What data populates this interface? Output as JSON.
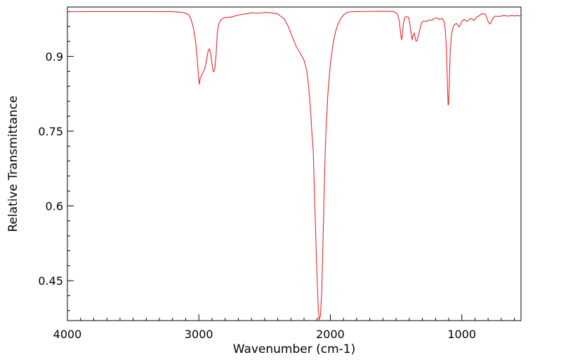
{
  "chart_data": {
    "type": "line",
    "xlabel": "Wavenumber (cm-1)",
    "ylabel": "Relative Transmittance",
    "xlim": [
      4000,
      550
    ],
    "ylim": [
      0.37,
      0.999
    ],
    "x_ticks": [
      {
        "value": 4000,
        "label": "4000"
      },
      {
        "value": 3000,
        "label": "3000"
      },
      {
        "value": 2000,
        "label": "2000"
      },
      {
        "value": 1000,
        "label": "1000"
      }
    ],
    "y_ticks": [
      {
        "value": 0.9,
        "label": "0.9"
      },
      {
        "value": 0.75,
        "label": "0.75"
      },
      {
        "value": 0.6,
        "label": "0.6"
      },
      {
        "value": 0.45,
        "label": "0.45"
      }
    ],
    "grid": false,
    "series": [
      {
        "color": "#e8262a",
        "points": [
          [
            4000,
            0.9895
          ],
          [
            3800,
            0.99
          ],
          [
            3600,
            0.99
          ],
          [
            3400,
            0.99
          ],
          [
            3200,
            0.9898
          ],
          [
            3120,
            0.988
          ],
          [
            3080,
            0.984
          ],
          [
            3060,
            0.975
          ],
          [
            3040,
            0.955
          ],
          [
            3025,
            0.93
          ],
          [
            3012,
            0.895
          ],
          [
            3003,
            0.86
          ],
          [
            2997,
            0.844
          ],
          [
            2990,
            0.856
          ],
          [
            2975,
            0.865
          ],
          [
            2955,
            0.875
          ],
          [
            2940,
            0.895
          ],
          [
            2928,
            0.913
          ],
          [
            2920,
            0.915
          ],
          [
            2910,
            0.905
          ],
          [
            2900,
            0.885
          ],
          [
            2890,
            0.869
          ],
          [
            2880,
            0.872
          ],
          [
            2870,
            0.9
          ],
          [
            2860,
            0.945
          ],
          [
            2850,
            0.965
          ],
          [
            2830,
            0.974
          ],
          [
            2800,
            0.978
          ],
          [
            2750,
            0.979
          ],
          [
            2700,
            0.983
          ],
          [
            2650,
            0.985
          ],
          [
            2600,
            0.9875
          ],
          [
            2550,
            0.9865
          ],
          [
            2500,
            0.988
          ],
          [
            2450,
            0.9875
          ],
          [
            2400,
            0.985
          ],
          [
            2350,
            0.975
          ],
          [
            2320,
            0.96
          ],
          [
            2290,
            0.94
          ],
          [
            2260,
            0.92
          ],
          [
            2230,
            0.907
          ],
          [
            2200,
            0.892
          ],
          [
            2180,
            0.872
          ],
          [
            2165,
            0.84
          ],
          [
            2150,
            0.79
          ],
          [
            2140,
            0.745
          ],
          [
            2130,
            0.71
          ],
          [
            2120,
            0.62
          ],
          [
            2110,
            0.53
          ],
          [
            2100,
            0.45
          ],
          [
            2092,
            0.395
          ],
          [
            2085,
            0.372
          ],
          [
            2075,
            0.38
          ],
          [
            2065,
            0.43
          ],
          [
            2055,
            0.54
          ],
          [
            2045,
            0.65
          ],
          [
            2035,
            0.74
          ],
          [
            2020,
            0.82
          ],
          [
            2000,
            0.885
          ],
          [
            1980,
            0.925
          ],
          [
            1960,
            0.95
          ],
          [
            1940,
            0.966
          ],
          [
            1920,
            0.976
          ],
          [
            1900,
            0.983
          ],
          [
            1880,
            0.987
          ],
          [
            1850,
            0.9895
          ],
          [
            1800,
            0.99
          ],
          [
            1700,
            0.9902
          ],
          [
            1600,
            0.9905
          ],
          [
            1520,
            0.99
          ],
          [
            1490,
            0.985
          ],
          [
            1475,
            0.97
          ],
          [
            1465,
            0.945
          ],
          [
            1458,
            0.933
          ],
          [
            1452,
            0.942
          ],
          [
            1445,
            0.965
          ],
          [
            1435,
            0.978
          ],
          [
            1420,
            0.98
          ],
          [
            1405,
            0.978
          ],
          [
            1395,
            0.965
          ],
          [
            1385,
            0.945
          ],
          [
            1378,
            0.933
          ],
          [
            1370,
            0.942
          ],
          [
            1362,
            0.947
          ],
          [
            1355,
            0.938
          ],
          [
            1348,
            0.93
          ],
          [
            1340,
            0.932
          ],
          [
            1330,
            0.942
          ],
          [
            1318,
            0.955
          ],
          [
            1305,
            0.968
          ],
          [
            1290,
            0.971
          ],
          [
            1270,
            0.97
          ],
          [
            1250,
            0.973
          ],
          [
            1230,
            0.972
          ],
          [
            1210,
            0.976
          ],
          [
            1190,
            0.977
          ],
          [
            1170,
            0.974
          ],
          [
            1150,
            0.976
          ],
          [
            1135,
            0.97
          ],
          [
            1125,
            0.95
          ],
          [
            1118,
            0.92
          ],
          [
            1112,
            0.87
          ],
          [
            1108,
            0.83
          ],
          [
            1104,
            0.802
          ],
          [
            1100,
            0.805
          ],
          [
            1095,
            0.85
          ],
          [
            1088,
            0.91
          ],
          [
            1080,
            0.94
          ],
          [
            1070,
            0.955
          ],
          [
            1060,
            0.962
          ],
          [
            1050,
            0.965
          ],
          [
            1040,
            0.966
          ],
          [
            1030,
            0.962
          ],
          [
            1020,
            0.959
          ],
          [
            1010,
            0.964
          ],
          [
            1000,
            0.97
          ],
          [
            990,
            0.973
          ],
          [
            980,
            0.974
          ],
          [
            970,
            0.972
          ],
          [
            960,
            0.97
          ],
          [
            950,
            0.972
          ],
          [
            940,
            0.975
          ],
          [
            930,
            0.976
          ],
          [
            920,
            0.974
          ],
          [
            910,
            0.972
          ],
          [
            900,
            0.974
          ],
          [
            890,
            0.978
          ],
          [
            880,
            0.98
          ],
          [
            870,
            0.981
          ],
          [
            860,
            0.983
          ],
          [
            850,
            0.985
          ],
          [
            840,
            0.986
          ],
          [
            830,
            0.985
          ],
          [
            820,
            0.984
          ],
          [
            810,
            0.978
          ],
          [
            800,
            0.97
          ],
          [
            792,
            0.966
          ],
          [
            785,
            0.965
          ],
          [
            778,
            0.968
          ],
          [
            770,
            0.973
          ],
          [
            760,
            0.978
          ],
          [
            750,
            0.98
          ],
          [
            740,
            0.981
          ],
          [
            730,
            0.98
          ],
          [
            720,
            0.98
          ],
          [
            700,
            0.981
          ],
          [
            680,
            0.982
          ],
          [
            660,
            0.981
          ],
          [
            640,
            0.981
          ],
          [
            620,
            0.982
          ],
          [
            600,
            0.981
          ],
          [
            580,
            0.982
          ],
          [
            560,
            0.981
          ],
          [
            550,
            0.982
          ]
        ]
      }
    ]
  }
}
